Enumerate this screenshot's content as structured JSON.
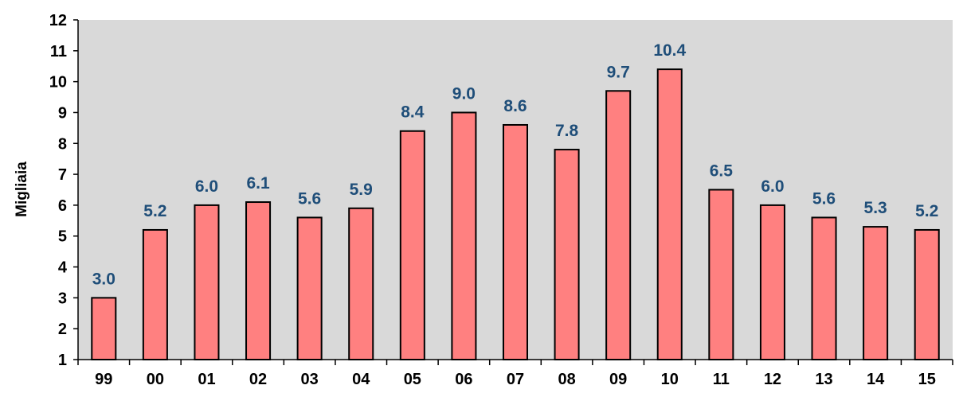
{
  "chart_data": {
    "type": "bar",
    "title": "",
    "xlabel": "",
    "ylabel": "Migliaia",
    "ylim": [
      1,
      12
    ],
    "yticks": [
      "1",
      "2",
      "3",
      "4",
      "5",
      "6",
      "7",
      "8",
      "9",
      "10",
      "11",
      "12"
    ],
    "grid": false,
    "legend": "none",
    "categories": [
      "99",
      "00",
      "01",
      "02",
      "03",
      "04",
      "05",
      "06",
      "07",
      "08",
      "09",
      "10",
      "11",
      "12",
      "13",
      "14",
      "15"
    ],
    "values": [
      3.0,
      5.2,
      6.0,
      6.1,
      5.6,
      5.9,
      8.4,
      9.0,
      8.6,
      7.8,
      9.7,
      10.4,
      6.5,
      6.0,
      5.6,
      5.3,
      5.2
    ],
    "value_labels": [
      "3.0",
      "5.2",
      "6.0",
      "6.1",
      "5.6",
      "5.9",
      "8.4",
      "9.0",
      "8.6",
      "7.8",
      "9.7",
      "10.4",
      "6.5",
      "6.0",
      "5.6",
      "5.3",
      "5.2"
    ],
    "colors": {
      "bar_fill": "#ff8080",
      "bar_stroke": "#000000",
      "plot_background": "#d9d9d9",
      "label_color": "#1f4e79"
    }
  }
}
